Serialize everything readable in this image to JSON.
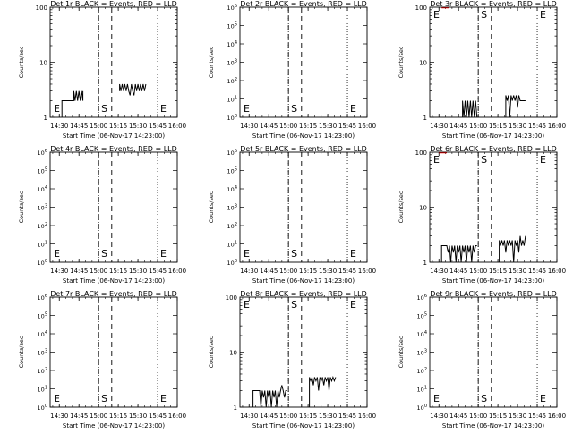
{
  "x_ticks": [
    "14:30",
    "14:45",
    "15:00",
    "15:15",
    "15:30",
    "15:45",
    "16:00"
  ],
  "xlabel": "Start Time (06-Nov-17 14:23:00)",
  "ylabel": "Counts/sec",
  "marker_S": "S",
  "marker_E": "E",
  "colors": {
    "events": "#000000",
    "lld": "#ff0000"
  },
  "chart_data": [
    {
      "type": "line",
      "title": "Det 1r BLACK = Events, RED = LLD",
      "xlim": [
        "14:23",
        "16:00"
      ],
      "ylim": [
        1,
        100
      ],
      "yscale": "log",
      "y_ticks": [
        "1",
        "10",
        "100"
      ],
      "markers": {
        "E": [
          "14:23",
          "15:45"
        ],
        "S": "15:00"
      },
      "series": [
        {
          "color": "#000000",
          "x": [
            "14:32",
            "14:32",
            "14:33",
            "14:33",
            "14:41",
            "14:41",
            "14:42",
            "14:43",
            "14:44",
            "14:45",
            "14:46",
            "14:47",
            "14:48",
            "14:48"
          ],
          "y": [
            1,
            2,
            2,
            2,
            2,
            3,
            2,
            3,
            2,
            3,
            2,
            3,
            2,
            3
          ]
        },
        {
          "color": "#000000",
          "x": [
            "15:16",
            "15:16",
            "15:17",
            "15:18",
            "15:19",
            "15:20",
            "15:21",
            "15:22",
            "15:23",
            "15:24",
            "15:25",
            "15:26",
            "15:27",
            "15:28",
            "15:29",
            "15:30",
            "15:31",
            "15:32",
            "15:33",
            "15:34",
            "15:35",
            "15:36"
          ],
          "y": [
            3,
            4,
            3,
            4,
            3,
            4,
            3,
            4,
            3,
            2.5,
            4,
            3,
            2.5,
            4,
            3,
            4,
            3,
            4,
            3,
            4,
            3,
            4
          ]
        }
      ]
    },
    {
      "type": "line",
      "title": "Det 2r BLACK = Events, RED = LLD",
      "xlim": [
        "14:23",
        "16:00"
      ],
      "ylim": [
        0,
        6
      ],
      "yscale": "pow10",
      "y_ticks": [
        "10^0",
        "10^1",
        "10^2",
        "10^3",
        "10^4",
        "10^5",
        "10^6"
      ],
      "markers": {
        "E": [
          "14:23",
          "15:45"
        ],
        "S": "15:00"
      },
      "series": []
    },
    {
      "type": "line",
      "title": "Det 3r BLACK = Events, RED = LLD",
      "xlim": [
        "14:23",
        "16:00"
      ],
      "ylim": [
        1,
        100
      ],
      "yscale": "log",
      "y_ticks": [
        "1",
        "10",
        "100"
      ],
      "markers": {
        "E": [
          "14:23",
          "15:45"
        ],
        "S": "15:00"
      },
      "series": [
        {
          "color": "#ff0000",
          "x": [
            "14:32",
            "14:38"
          ],
          "y": [
            98,
            98
          ]
        },
        {
          "color": "#000000",
          "x": [
            "14:48",
            "14:48",
            "14:49",
            "14:50",
            "14:51",
            "14:52",
            "14:53",
            "14:54",
            "14:55",
            "14:56",
            "14:57",
            "14:58",
            "14:59",
            "14:59"
          ],
          "y": [
            1,
            2,
            1,
            2,
            1,
            2,
            1,
            2,
            1,
            2,
            1,
            2,
            1,
            1
          ]
        },
        {
          "color": "#000000",
          "x": [
            "15:21",
            "15:21",
            "15:22",
            "15:23",
            "15:24",
            "15:25",
            "15:26",
            "15:27",
            "15:28",
            "15:29",
            "15:30",
            "15:31",
            "15:32",
            "15:34",
            "15:36"
          ],
          "y": [
            1,
            2.5,
            2,
            2.5,
            1,
            2.5,
            2,
            2.5,
            2,
            2.5,
            1.5,
            2.5,
            2,
            2,
            2
          ]
        }
      ]
    },
    {
      "type": "line",
      "title": "Det 4r BLACK = Events, RED = LLD",
      "xlim": [
        "14:23",
        "16:00"
      ],
      "ylim": [
        0,
        6
      ],
      "yscale": "pow10",
      "y_ticks": [
        "10^0",
        "10^1",
        "10^2",
        "10^3",
        "10^4",
        "10^5",
        "10^6"
      ],
      "markers": {
        "E": [
          "14:23",
          "15:45"
        ],
        "S": "15:00"
      },
      "series": []
    },
    {
      "type": "line",
      "title": "Det 5r BLACK = Events, RED = LLD",
      "xlim": [
        "14:23",
        "16:00"
      ],
      "ylim": [
        0,
        6
      ],
      "yscale": "pow10",
      "y_ticks": [
        "10^0",
        "10^1",
        "10^2",
        "10^3",
        "10^4",
        "10^5",
        "10^6"
      ],
      "markers": {
        "E": [
          "14:23",
          "15:45"
        ],
        "S": "15:00"
      },
      "series": []
    },
    {
      "type": "line",
      "title": "Det 6r BLACK = Events, RED = LLD",
      "xlim": [
        "14:23",
        "16:00"
      ],
      "ylim": [
        1,
        100
      ],
      "yscale": "log",
      "y_ticks": [
        "1",
        "10",
        "100"
      ],
      "markers": {
        "E": [
          "14:23",
          "15:45"
        ],
        "S": "15:00"
      },
      "series": [
        {
          "color": "#ff0000",
          "x": [
            "14:30",
            "14:36"
          ],
          "y": [
            98,
            98
          ]
        },
        {
          "color": "#000000",
          "x": [
            "14:32",
            "14:32",
            "14:36",
            "14:37",
            "14:38",
            "14:39",
            "14:40",
            "14:41",
            "14:42",
            "14:43",
            "14:44",
            "14:45",
            "14:46",
            "14:47",
            "14:48",
            "14:49",
            "14:50",
            "14:51",
            "14:52",
            "14:53",
            "14:54",
            "14:55",
            "14:56",
            "14:57",
            "14:58",
            "14:59"
          ],
          "y": [
            1,
            2,
            2,
            1.5,
            2,
            1,
            2,
            1.5,
            2,
            1,
            2,
            1.5,
            2,
            1,
            2,
            1.5,
            2,
            1,
            2,
            1.5,
            2,
            1,
            2,
            1.5,
            2,
            2
          ]
        },
        {
          "color": "#000000",
          "x": [
            "15:16",
            "15:16",
            "15:17",
            "15:18",
            "15:19",
            "15:20",
            "15:21",
            "15:22",
            "15:23",
            "15:24",
            "15:25",
            "15:26",
            "15:27",
            "15:28",
            "15:29",
            "15:30",
            "15:31",
            "15:32",
            "15:33",
            "15:34",
            "15:35",
            "15:36"
          ],
          "y": [
            1,
            2.5,
            2,
            2.5,
            2,
            2.5,
            1.5,
            2.5,
            2,
            2.5,
            2,
            2.5,
            1,
            2.5,
            2,
            2.5,
            1.5,
            3,
            2,
            2.5,
            2,
            3
          ]
        }
      ]
    },
    {
      "type": "line",
      "title": "Det 7r BLACK = Events, RED = LLD",
      "xlim": [
        "14:23",
        "16:00"
      ],
      "ylim": [
        0,
        6
      ],
      "yscale": "pow10",
      "y_ticks": [
        "10^0",
        "10^1",
        "10^2",
        "10^3",
        "10^4",
        "10^5",
        "10^6"
      ],
      "markers": {
        "E": [
          "14:23",
          "15:45"
        ],
        "S": "15:00"
      },
      "series": []
    },
    {
      "type": "line",
      "title": "Det 8r BLACK = Events, RED = LLD",
      "xlim": [
        "14:23",
        "16:00"
      ],
      "ylim": [
        1,
        100
      ],
      "yscale": "log",
      "y_ticks": [
        "1",
        "10",
        "100"
      ],
      "markers": {
        "E": [
          "14:23",
          "15:45"
        ],
        "S": "15:00"
      },
      "series": [
        {
          "color": "#000000",
          "x": [
            "14:33",
            "14:33",
            "14:38",
            "14:39",
            "14:40",
            "14:41",
            "14:42",
            "14:43",
            "14:44",
            "14:45",
            "14:46",
            "14:47",
            "14:48",
            "14:49",
            "14:50",
            "14:51",
            "14:52",
            "14:53",
            "14:54",
            "14:55",
            "14:56",
            "14:57",
            "14:58",
            "14:59"
          ],
          "y": [
            1,
            2,
            2,
            1,
            2,
            1.5,
            2,
            1,
            2,
            1.5,
            2,
            1,
            2,
            1.5,
            2,
            1,
            2,
            1.5,
            2,
            2.5,
            2,
            1.5,
            2,
            2
          ]
        },
        {
          "color": "#000000",
          "x": [
            "15:16",
            "15:16",
            "15:17",
            "15:18",
            "15:19",
            "15:20",
            "15:21",
            "15:22",
            "15:23",
            "15:24",
            "15:25",
            "15:26",
            "15:27",
            "15:28",
            "15:29",
            "15:30",
            "15:31",
            "15:32",
            "15:33",
            "15:34",
            "15:35",
            "15:36"
          ],
          "y": [
            1,
            3.5,
            3,
            3.5,
            2.5,
            3.5,
            3,
            3.5,
            2,
            3.5,
            3,
            3.5,
            2.5,
            3.5,
            3,
            3.5,
            2,
            3.5,
            3,
            3.5,
            3,
            3.5
          ]
        }
      ]
    },
    {
      "type": "line",
      "title": "Det 9r BLACK = Events, RED = LLD",
      "xlim": [
        "14:23",
        "16:00"
      ],
      "ylim": [
        0,
        6
      ],
      "yscale": "pow10",
      "y_ticks": [
        "10^0",
        "10^1",
        "10^2",
        "10^3",
        "10^4",
        "10^5",
        "10^6"
      ],
      "markers": {
        "E": [
          "14:23",
          "15:45"
        ],
        "S": "15:00"
      },
      "series": []
    }
  ]
}
